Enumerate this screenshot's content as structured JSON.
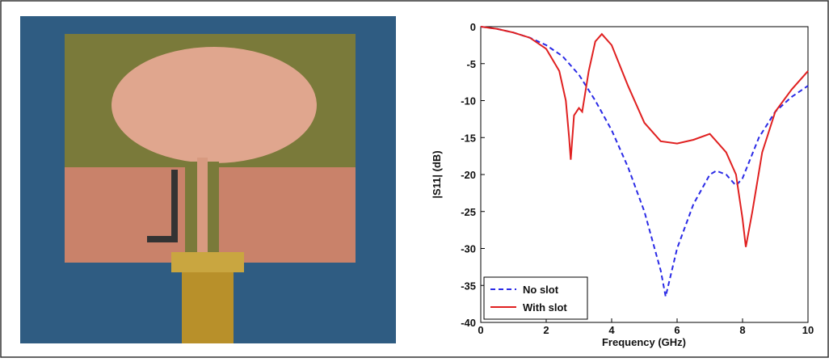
{
  "chart_data": {
    "type": "line",
    "xlabel": "Frequency (GHz)",
    "ylabel": "|S11|  (dB)",
    "xlim": [
      0,
      10
    ],
    "xticks": [
      0,
      2,
      4,
      6,
      8,
      10
    ],
    "ylim": [
      -40,
      0
    ],
    "yticks": [
      0,
      -5,
      -10,
      -15,
      -20,
      -25,
      -30,
      -35,
      -40
    ],
    "legend": "lower left",
    "series": [
      {
        "name": "No slot",
        "color": "#2a2ae6",
        "dash": true,
        "x": [
          0,
          0.5,
          1,
          1.5,
          2,
          2.5,
          3,
          3.5,
          4,
          4.5,
          5,
          5.5,
          5.65,
          6,
          6.5,
          7,
          7.2,
          7.5,
          7.8,
          8,
          8.5,
          9,
          9.5,
          10
        ],
        "values": [
          0,
          -0.3,
          -0.8,
          -1.5,
          -2.5,
          -4,
          -6.5,
          -10,
          -14,
          -19,
          -25,
          -33,
          -36.5,
          -30,
          -24,
          -20,
          -19.5,
          -20,
          -21.5,
          -20.5,
          -15,
          -11.5,
          -9.5,
          -8
        ]
      },
      {
        "name": "With slot",
        "color": "#e02020",
        "dash": false,
        "x": [
          0,
          0.5,
          1,
          1.5,
          2,
          2.4,
          2.6,
          2.7,
          2.75,
          2.85,
          3,
          3.1,
          3.3,
          3.5,
          3.7,
          4,
          4.5,
          5,
          5.5,
          6,
          6.5,
          7,
          7.5,
          7.8,
          8,
          8.1,
          8.3,
          8.6,
          9,
          9.5,
          10
        ],
        "values": [
          0,
          -0.3,
          -0.8,
          -1.5,
          -3,
          -6,
          -10,
          -15,
          -18,
          -12,
          -11,
          -11.5,
          -6,
          -2,
          -1,
          -2.5,
          -8,
          -13,
          -15.5,
          -15.8,
          -15.3,
          -14.5,
          -17,
          -20,
          -26,
          -29.8,
          -25,
          -17,
          -11.5,
          -8.5,
          -6
        ]
      }
    ]
  }
}
